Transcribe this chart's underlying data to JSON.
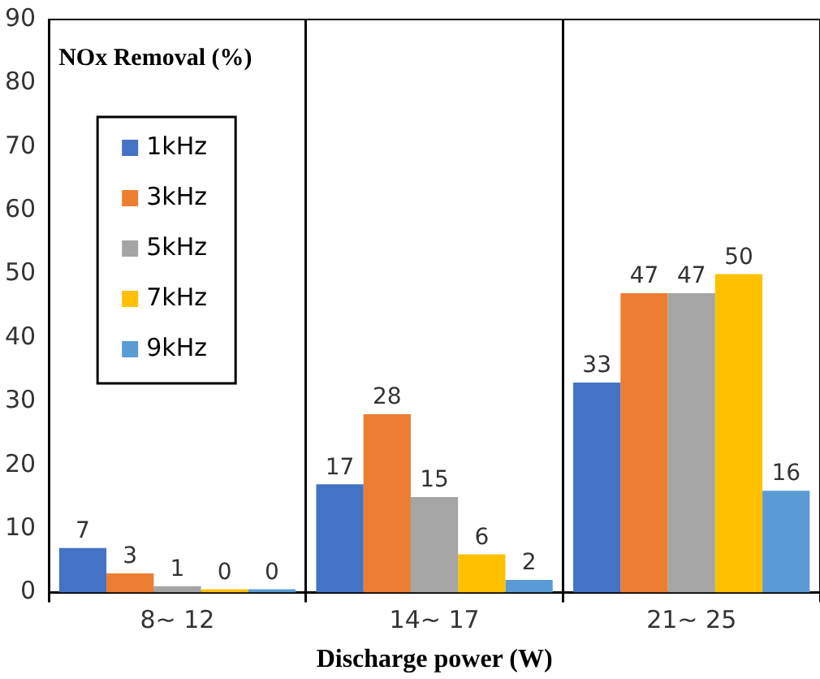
{
  "chart_data": {
    "type": "bar",
    "ylabel": "NOx Removal (%)",
    "xlabel": "Discharge power (W)",
    "categories": [
      "8~ 12",
      "14~ 17",
      "21~ 25"
    ],
    "series": [
      {
        "name": "1kHz",
        "color": "#4472c4",
        "values": [
          7,
          17,
          33
        ]
      },
      {
        "name": "3kHz",
        "color": "#ed7d31",
        "values": [
          3,
          28,
          47
        ]
      },
      {
        "name": "5kHz",
        "color": "#a5a5a5",
        "values": [
          1,
          15,
          47
        ]
      },
      {
        "name": "7kHz",
        "color": "#ffc000",
        "values": [
          0,
          6,
          50
        ]
      },
      {
        "name": "9kHz",
        "color": "#5b9bd5",
        "values": [
          0,
          2,
          16
        ]
      }
    ],
    "ylim": [
      0,
      90
    ],
    "yticks": [
      0,
      10,
      20,
      30,
      40,
      50,
      60,
      70,
      80,
      90
    ],
    "grid": "x",
    "legend": "top left",
    "data_labels": true
  }
}
